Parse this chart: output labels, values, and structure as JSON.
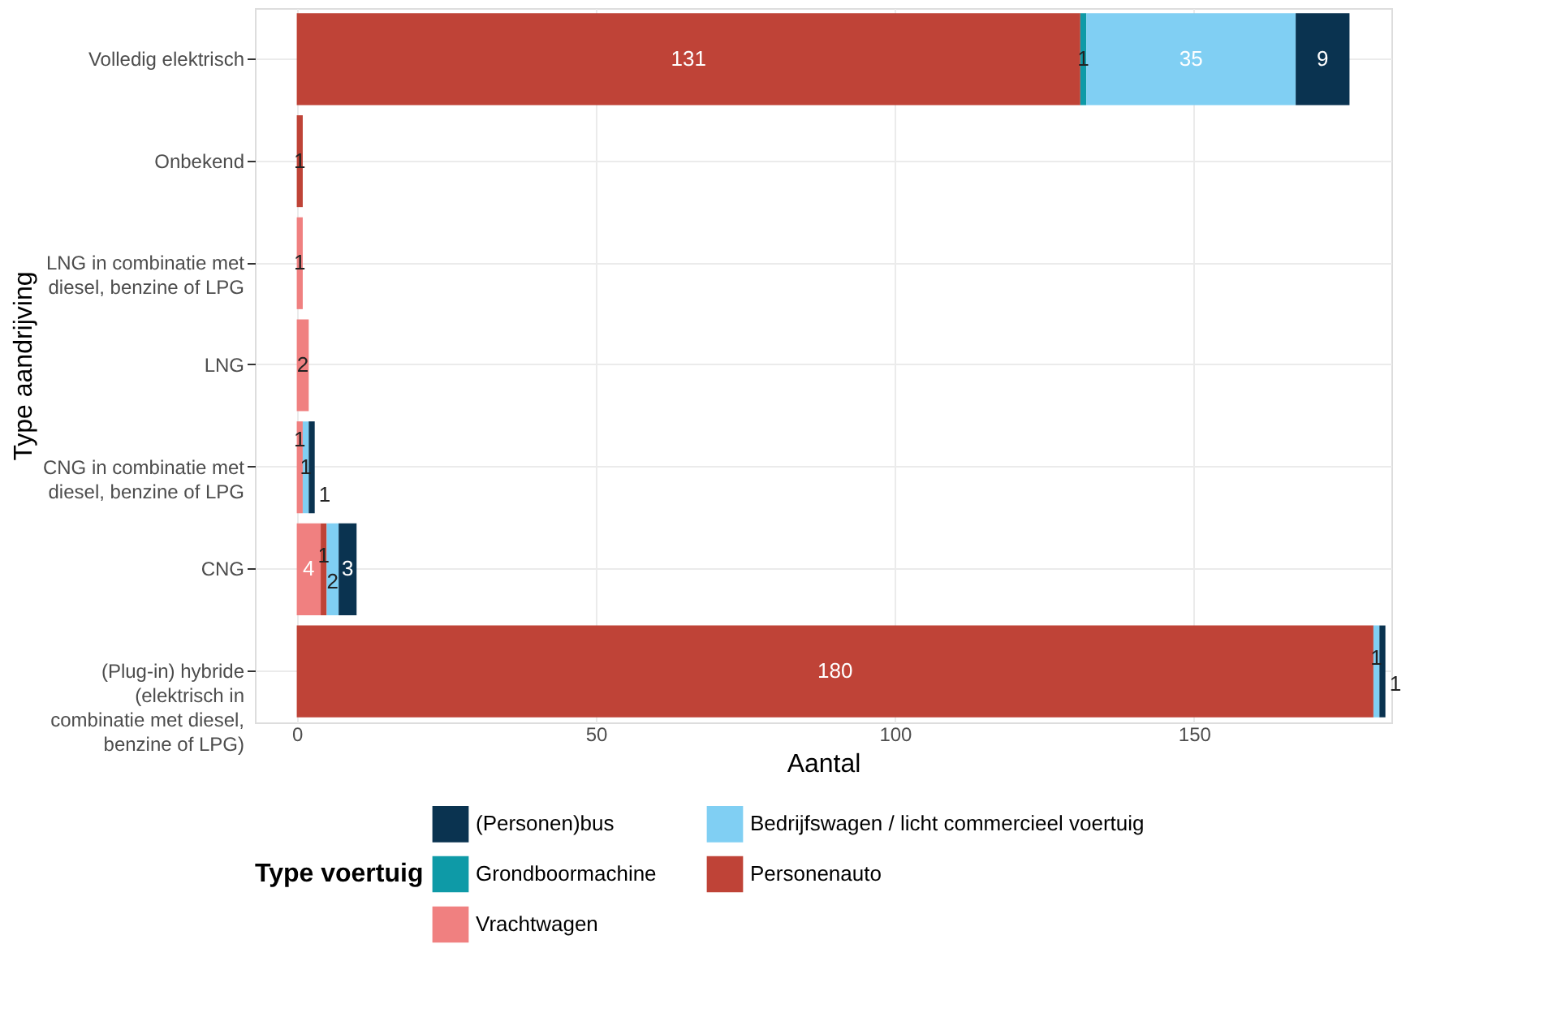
{
  "chart_data": {
    "type": "bar",
    "orientation": "horizontal",
    "stacked": true,
    "xlabel": "Aantal",
    "ylabel": "Type aandrijving",
    "legend_title": "Type voertuig",
    "legend": "bottom",
    "grid": true,
    "data_labels": true,
    "categories": [
      "Volledig elektrisch",
      "Onbekend",
      "LNG in combinatie met\ndiesel, benzine of LPG",
      "LNG",
      "CNG in combinatie met\ndiesel, benzine of LPG",
      "CNG",
      "(Plug-in) hybride\n(elektrisch in\ncombinatie met diesel,\nbenzine of LPG)"
    ],
    "xlim": [
      -7,
      183
    ],
    "xticks": [
      0,
      50,
      100,
      150
    ],
    "series": [
      {
        "name": "Vrachtwagen",
        "color": "#f08080",
        "values": [
          null,
          null,
          1,
          2,
          1,
          4,
          null
        ]
      },
      {
        "name": "Personenauto",
        "color": "#bf4337",
        "values": [
          131,
          1,
          null,
          null,
          null,
          1,
          180
        ]
      },
      {
        "name": "Grondboormachine",
        "color": "#0e9aa7",
        "values": [
          1,
          null,
          null,
          null,
          null,
          null,
          null
        ]
      },
      {
        "name": "Bedrijfswagen / licht commercieel voertuig",
        "color": "#80cff3",
        "values": [
          35,
          null,
          null,
          null,
          1,
          2,
          1
        ]
      },
      {
        "name": "(Personen)bus",
        "color": "#0a3350",
        "values": [
          9,
          null,
          null,
          null,
          1,
          3,
          1
        ]
      }
    ]
  }
}
